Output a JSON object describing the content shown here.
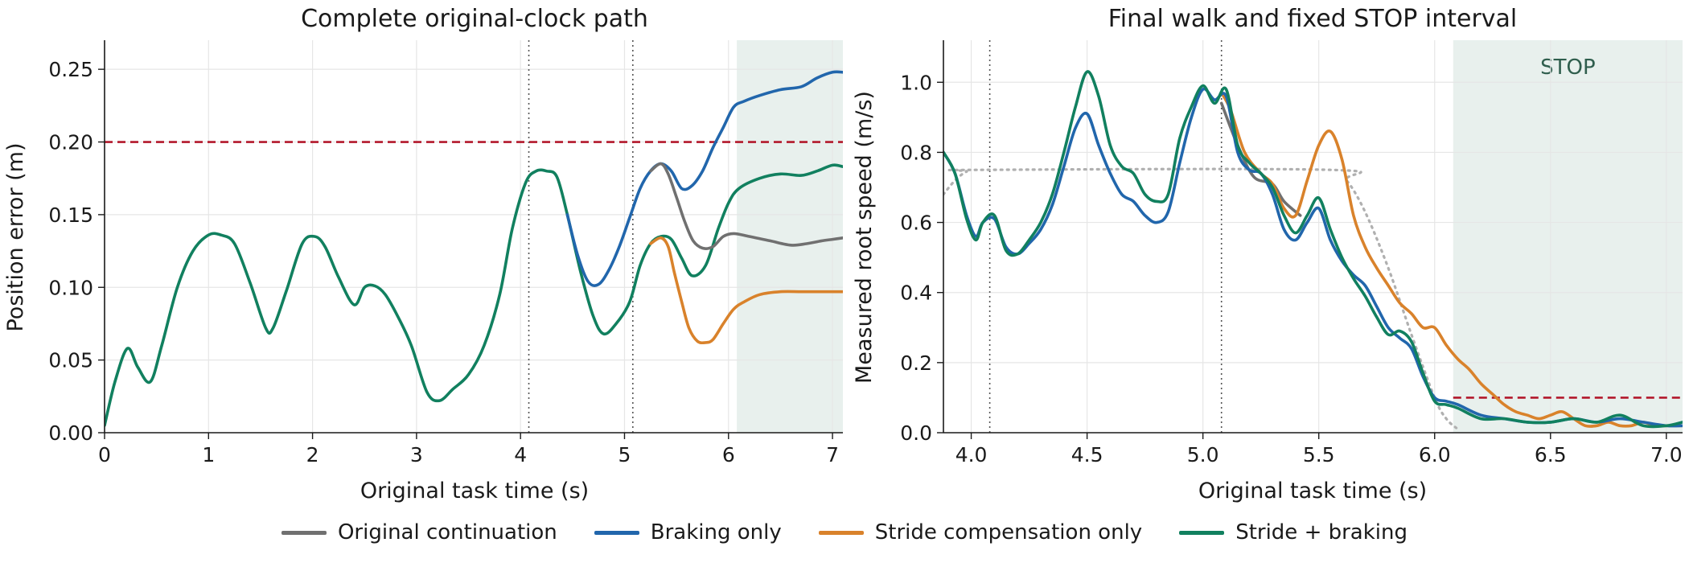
{
  "legend": [
    {
      "label": "Original continuation",
      "color": "#707070"
    },
    {
      "label": "Braking only",
      "color": "#2166ac"
    },
    {
      "label": "Stride compensation only",
      "color": "#d9822b"
    },
    {
      "label": "Stride + braking",
      "color": "#11805f"
    }
  ],
  "chart_data": [
    {
      "type": "line",
      "title": "Complete original-clock path",
      "xlabel": "Original task time (s)",
      "ylabel": "Position error (m)",
      "xlim": [
        0,
        7.1
      ],
      "ylim": [
        0,
        0.27
      ],
      "xticks": [
        0,
        1,
        2,
        3,
        4,
        5,
        6,
        7
      ],
      "xtick_labels": [
        "0",
        "1",
        "2",
        "3",
        "4",
        "5",
        "6",
        "7"
      ],
      "yticks": [
        0,
        0.05,
        0.1,
        0.15,
        0.2,
        0.25
      ],
      "ytick_labels": [
        "0.00",
        "0.05",
        "0.10",
        "0.15",
        "0.20",
        "0.25"
      ],
      "grid": true,
      "threshold": {
        "value": 0.2,
        "color": "#b2182b",
        "style": "dashed"
      },
      "vlines": [
        4.08,
        5.08
      ],
      "shaded_region": {
        "x": [
          6.08,
          7.1
        ],
        "color": "#dce8e3"
      },
      "series": [
        {
          "name": "Stride + braking",
          "color": "#11805f",
          "x": [
            0,
            0.1,
            0.22,
            0.32,
            0.44,
            0.55,
            0.7,
            0.85,
            1.0,
            1.12,
            1.25,
            1.4,
            1.55,
            1.62,
            1.75,
            1.9,
            2.02,
            2.12,
            2.25,
            2.4,
            2.5,
            2.6,
            2.7,
            2.82,
            2.95,
            3.1,
            3.22,
            3.35,
            3.5,
            3.65,
            3.8,
            3.92,
            4.05,
            4.15,
            4.25,
            4.35,
            4.45,
            4.58,
            4.7,
            4.8,
            4.92,
            5.05,
            5.15,
            5.25,
            5.35,
            5.45,
            5.55,
            5.65,
            5.78,
            5.9,
            6.0,
            6.1,
            6.3,
            6.5,
            6.7,
            6.85,
            7.0,
            7.1
          ],
          "y": [
            0.005,
            0.035,
            0.058,
            0.045,
            0.035,
            0.06,
            0.1,
            0.125,
            0.136,
            0.136,
            0.13,
            0.103,
            0.072,
            0.072,
            0.098,
            0.13,
            0.135,
            0.128,
            0.107,
            0.088,
            0.1,
            0.101,
            0.095,
            0.08,
            0.06,
            0.028,
            0.022,
            0.03,
            0.04,
            0.06,
            0.095,
            0.14,
            0.172,
            0.18,
            0.18,
            0.176,
            0.15,
            0.11,
            0.08,
            0.068,
            0.075,
            0.09,
            0.115,
            0.13,
            0.135,
            0.133,
            0.12,
            0.108,
            0.115,
            0.14,
            0.158,
            0.168,
            0.175,
            0.178,
            0.177,
            0.18,
            0.184,
            0.183
          ]
        },
        {
          "name": "Braking only",
          "color": "#2166ac",
          "x": [
            4.45,
            4.55,
            4.65,
            4.75,
            4.85,
            4.95,
            5.05,
            5.15,
            5.25,
            5.35,
            5.45,
            5.55,
            5.65,
            5.75,
            5.85,
            5.95,
            6.05,
            6.15,
            6.3,
            6.5,
            6.7,
            6.85,
            7.0,
            7.1
          ],
          "y": [
            0.15,
            0.122,
            0.104,
            0.102,
            0.112,
            0.128,
            0.148,
            0.168,
            0.18,
            0.185,
            0.18,
            0.168,
            0.17,
            0.18,
            0.196,
            0.21,
            0.224,
            0.228,
            0.232,
            0.236,
            0.238,
            0.244,
            0.248,
            0.248
          ]
        },
        {
          "name": "Original continuation",
          "color": "#707070",
          "x": [
            5.25,
            5.35,
            5.42,
            5.5,
            5.58,
            5.66,
            5.75,
            5.85,
            5.95,
            6.05,
            6.2,
            6.4,
            6.6,
            6.75,
            6.9,
            7.0,
            7.1
          ],
          "y": [
            0.18,
            0.185,
            0.178,
            0.162,
            0.145,
            0.132,
            0.127,
            0.128,
            0.135,
            0.137,
            0.135,
            0.132,
            0.129,
            0.13,
            0.132,
            0.133,
            0.134
          ]
        },
        {
          "name": "Stride compensation only",
          "color": "#d9822b",
          "x": [
            5.25,
            5.35,
            5.42,
            5.48,
            5.55,
            5.62,
            5.7,
            5.78,
            5.85,
            5.95,
            6.05,
            6.15,
            6.3,
            6.5,
            6.7,
            6.9,
            7.1
          ],
          "y": [
            0.13,
            0.134,
            0.128,
            0.11,
            0.09,
            0.072,
            0.063,
            0.062,
            0.064,
            0.075,
            0.085,
            0.09,
            0.095,
            0.097,
            0.097,
            0.097,
            0.097
          ]
        }
      ]
    },
    {
      "type": "line",
      "title": "Final walk and fixed STOP interval",
      "xlabel": "Original task time (s)",
      "ylabel": "Measured root speed (m/s)",
      "xlim": [
        3.88,
        7.07
      ],
      "ylim": [
        0,
        1.12
      ],
      "xticks": [
        4.0,
        4.5,
        5.0,
        5.5,
        6.0,
        6.5,
        7.0
      ],
      "xtick_labels": [
        "4.0",
        "4.5",
        "5.0",
        "5.5",
        "6.0",
        "6.5",
        "7.0"
      ],
      "yticks": [
        0,
        0.2,
        0.4,
        0.6,
        0.8,
        1.0
      ],
      "ytick_labels": [
        "0.0",
        "0.2",
        "0.4",
        "0.6",
        "0.8",
        "1.0"
      ],
      "grid": true,
      "threshold": {
        "value": 0.1,
        "x_start": 6.08,
        "color": "#b2182b",
        "style": "dashed"
      },
      "vlines": [
        4.08,
        5.08
      ],
      "shaded_region": {
        "x": [
          6.08,
          7.07
        ],
        "color": "#dce8e3",
        "label": "STOP"
      },
      "reference": {
        "color": "#b0b0b0",
        "style": "dotted",
        "x": [
          3.88,
          3.93,
          3.98,
          4.03,
          5.55,
          5.62,
          5.7,
          5.8,
          5.9,
          6.0,
          6.05,
          6.1
        ],
        "y": [
          0.68,
          0.72,
          0.745,
          0.75,
          0.75,
          0.72,
          0.63,
          0.47,
          0.28,
          0.1,
          0.04,
          0.01
        ]
      },
      "series": [
        {
          "name": "Original continuation",
          "color": "#707070",
          "x": [
            5.08,
            5.15,
            5.22,
            5.3,
            5.35,
            5.42
          ],
          "y": [
            0.94,
            0.82,
            0.73,
            0.71,
            0.66,
            0.62
          ]
        },
        {
          "name": "Stride compensation only",
          "color": "#d9822b",
          "x": [
            5.08,
            5.12,
            5.18,
            5.25,
            5.3,
            5.35,
            5.4,
            5.45,
            5.5,
            5.55,
            5.6,
            5.65,
            5.7,
            5.75,
            5.8,
            5.85,
            5.9,
            5.95,
            6.0,
            6.05,
            6.1,
            6.15,
            6.2,
            6.25,
            6.3,
            6.35,
            6.4,
            6.45,
            6.5,
            6.55,
            6.6,
            6.65,
            6.7,
            6.75,
            6.8,
            6.85,
            6.9,
            6.95,
            7.0,
            7.07
          ],
          "y": [
            0.97,
            0.92,
            0.8,
            0.74,
            0.71,
            0.64,
            0.62,
            0.72,
            0.82,
            0.86,
            0.78,
            0.62,
            0.53,
            0.47,
            0.42,
            0.37,
            0.34,
            0.3,
            0.3,
            0.25,
            0.21,
            0.18,
            0.14,
            0.11,
            0.08,
            0.06,
            0.05,
            0.04,
            0.05,
            0.06,
            0.04,
            0.02,
            0.02,
            0.03,
            0.02,
            0.02,
            0.03,
            0.02,
            0.02,
            0.02
          ]
        },
        {
          "name": "Braking only",
          "color": "#2166ac",
          "x": [
            3.88,
            3.93,
            3.98,
            4.02,
            4.05,
            4.1,
            4.15,
            4.2,
            4.25,
            4.3,
            4.35,
            4.4,
            4.45,
            4.5,
            4.55,
            4.6,
            4.65,
            4.7,
            4.75,
            4.8,
            4.85,
            4.9,
            4.95,
            5.0,
            5.05,
            5.1,
            5.15,
            5.2,
            5.25,
            5.3,
            5.35,
            5.4,
            5.45,
            5.5,
            5.55,
            5.6,
            5.65,
            5.7,
            5.75,
            5.8,
            5.85,
            5.9,
            5.95,
            6.0,
            6.05,
            6.1,
            6.2,
            6.3,
            6.4,
            6.5,
            6.6,
            6.7,
            6.8,
            6.9,
            7.0,
            7.07
          ],
          "y": [
            0.8,
            0.74,
            0.62,
            0.56,
            0.6,
            0.61,
            0.53,
            0.51,
            0.54,
            0.58,
            0.65,
            0.76,
            0.87,
            0.91,
            0.82,
            0.74,
            0.68,
            0.66,
            0.62,
            0.6,
            0.63,
            0.77,
            0.9,
            0.98,
            0.95,
            0.96,
            0.8,
            0.75,
            0.74,
            0.68,
            0.58,
            0.55,
            0.6,
            0.64,
            0.55,
            0.49,
            0.45,
            0.42,
            0.36,
            0.3,
            0.27,
            0.24,
            0.16,
            0.1,
            0.09,
            0.08,
            0.05,
            0.04,
            0.03,
            0.03,
            0.04,
            0.03,
            0.04,
            0.03,
            0.02,
            0.02
          ]
        },
        {
          "name": "Stride + braking",
          "color": "#11805f",
          "x": [
            3.88,
            3.93,
            3.98,
            4.02,
            4.05,
            4.1,
            4.15,
            4.2,
            4.25,
            4.3,
            4.35,
            4.4,
            4.45,
            4.5,
            4.55,
            4.6,
            4.65,
            4.7,
            4.75,
            4.8,
            4.85,
            4.9,
            4.95,
            5.0,
            5.05,
            5.1,
            5.15,
            5.2,
            5.25,
            5.3,
            5.35,
            5.4,
            5.45,
            5.5,
            5.55,
            5.6,
            5.65,
            5.7,
            5.75,
            5.8,
            5.85,
            5.9,
            5.95,
            6.0,
            6.05,
            6.1,
            6.2,
            6.3,
            6.4,
            6.5,
            6.6,
            6.7,
            6.8,
            6.9,
            7.0,
            7.07
          ],
          "y": [
            0.8,
            0.74,
            0.61,
            0.55,
            0.6,
            0.62,
            0.52,
            0.51,
            0.55,
            0.6,
            0.68,
            0.8,
            0.93,
            1.03,
            0.96,
            0.82,
            0.76,
            0.74,
            0.68,
            0.66,
            0.68,
            0.84,
            0.93,
            0.99,
            0.94,
            0.98,
            0.82,
            0.77,
            0.74,
            0.7,
            0.62,
            0.57,
            0.62,
            0.67,
            0.58,
            0.5,
            0.44,
            0.39,
            0.33,
            0.28,
            0.29,
            0.26,
            0.17,
            0.09,
            0.08,
            0.07,
            0.04,
            0.04,
            0.03,
            0.03,
            0.04,
            0.03,
            0.05,
            0.02,
            0.02,
            0.03
          ]
        }
      ]
    }
  ]
}
